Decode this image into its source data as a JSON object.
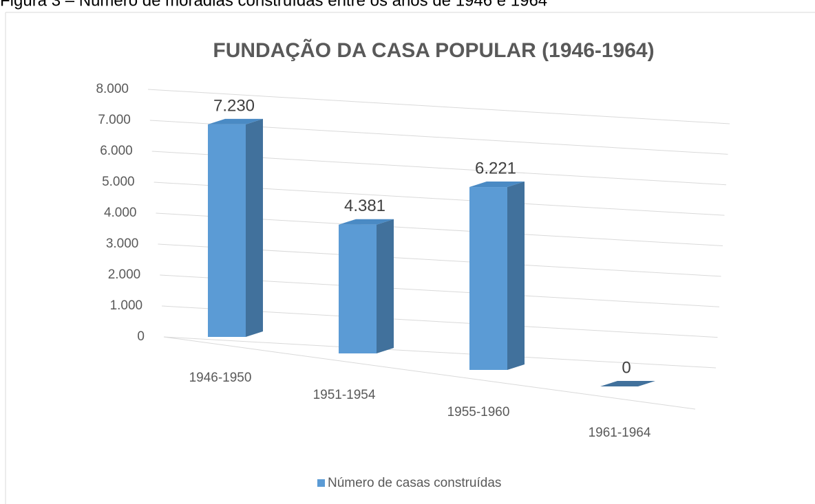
{
  "caption": "Figura 3 – Número de moradias construídas entre os anos de 1946 e 1964",
  "chart_data": {
    "type": "bar3d",
    "title": "FUNDAÇÃO DA CASA POPULAR (1946-1964)",
    "categories": [
      "1946-1950",
      "1951-1954",
      "1955-1960",
      "1961-1964"
    ],
    "series": [
      {
        "name": "Número de casas construídas",
        "color": "#5b9bd5",
        "values": [
          7230,
          4381,
          6221,
          0
        ],
        "value_labels": [
          "7.230",
          "4.381",
          "6.221",
          "0"
        ]
      }
    ],
    "ylim": [
      0,
      8000
    ],
    "yticks": [
      0,
      {
        "value": 1000,
        "label": "1.000"
      },
      {
        "value": 2000,
        "label": "2.000"
      },
      {
        "value": 3000,
        "label": "3.000"
      },
      {
        "value": 4000,
        "label": "4.000"
      },
      {
        "value": 5000,
        "label": "5.000"
      },
      {
        "value": 6000,
        "label": "6.000"
      },
      {
        "value": 7000,
        "label": "7.000"
      },
      {
        "value": 8000,
        "label": "8.000"
      }
    ],
    "grid": true,
    "legend": "bottom"
  }
}
